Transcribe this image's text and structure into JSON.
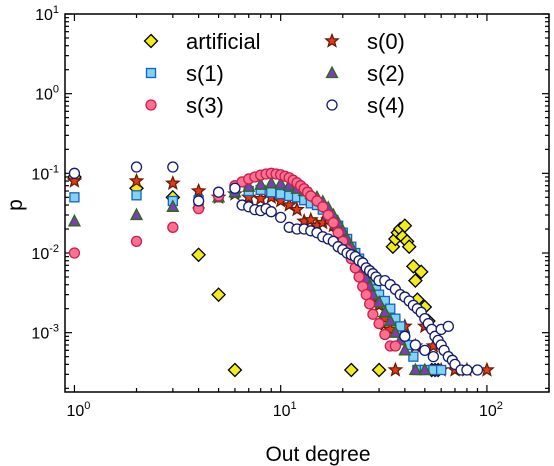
{
  "chart_data": {
    "type": "scatter",
    "xlabel": "Out degree",
    "ylabel": "p",
    "xscale": "log",
    "yscale": "log",
    "xlim": [
      0.9,
      200
    ],
    "ylim": [
      0.00018,
      10
    ],
    "x_ticks": [
      {
        "value": 1,
        "label": "10",
        "exp": "0"
      },
      {
        "value": 10,
        "label": "10",
        "exp": "1"
      },
      {
        "value": 100,
        "label": "10",
        "exp": "2"
      }
    ],
    "y_ticks": [
      {
        "value": 0.001,
        "label": "10",
        "exp": "-3"
      },
      {
        "value": 0.01,
        "label": "10",
        "exp": "-2"
      },
      {
        "value": 0.1,
        "label": "10",
        "exp": "-1"
      },
      {
        "value": 1,
        "label": "10",
        "exp": "0"
      },
      {
        "value": 10,
        "label": "10",
        "exp": "1"
      }
    ],
    "legend_position": "top",
    "series": [
      {
        "name": "artificial",
        "marker": "diamond",
        "color": "#f2ec1a",
        "edge": "#000000",
        "points": [
          [
            1,
            0.09
          ],
          [
            2,
            0.065
          ],
          [
            3,
            0.05
          ],
          [
            4,
            0.0095
          ],
          [
            5,
            0.003
          ],
          [
            6,
            0.00034
          ],
          [
            22,
            0.00034
          ],
          [
            30,
            0.00034
          ],
          [
            33,
            0.0011
          ],
          [
            35,
            0.012
          ],
          [
            36,
            0.015
          ],
          [
            37,
            0.018
          ],
          [
            38,
            0.02
          ],
          [
            39,
            0.016
          ],
          [
            40,
            0.022
          ],
          [
            41,
            0.014
          ],
          [
            42,
            0.012
          ],
          [
            44,
            0.0068
          ],
          [
            45,
            0.0045
          ],
          [
            46,
            0.0026
          ],
          [
            48,
            0.0058
          ],
          [
            50,
            0.0021
          ],
          [
            52,
            0.0014
          ],
          [
            54,
            0.00034
          ],
          [
            56,
            0.00034
          ],
          [
            58,
            0.00034
          ]
        ]
      },
      {
        "name": "s(0)",
        "marker": "star",
        "color": "#e23a1a",
        "edge": "#6b1a00",
        "points": [
          [
            1,
            0.08
          ],
          [
            2,
            0.08
          ],
          [
            3,
            0.075
          ],
          [
            4,
            0.06
          ],
          [
            5,
            0.05
          ],
          [
            6,
            0.055
          ],
          [
            7,
            0.05
          ],
          [
            8,
            0.048
          ],
          [
            9,
            0.05
          ],
          [
            10,
            0.045
          ],
          [
            11,
            0.04
          ],
          [
            12,
            0.035
          ],
          [
            13,
            0.025
          ],
          [
            14,
            0.026
          ],
          [
            15,
            0.022
          ],
          [
            16,
            0.024
          ],
          [
            17,
            0.026
          ],
          [
            18,
            0.022
          ],
          [
            19,
            0.018
          ],
          [
            20,
            0.015
          ],
          [
            21,
            0.012
          ],
          [
            22,
            0.0095
          ],
          [
            23,
            0.008
          ],
          [
            24,
            0.0065
          ],
          [
            25,
            0.0055
          ],
          [
            26,
            0.0045
          ],
          [
            27,
            0.0035
          ],
          [
            28,
            0.0028
          ],
          [
            30,
            0.0022
          ],
          [
            32,
            0.0015
          ],
          [
            34,
            0.0011
          ],
          [
            36,
            0.00034
          ],
          [
            40,
            0.0012
          ],
          [
            45,
            0.00068
          ],
          [
            50,
            0.0012
          ],
          [
            55,
            0.00068
          ],
          [
            60,
            0.00034
          ],
          [
            70,
            0.00034
          ],
          [
            80,
            0.00034
          ],
          [
            100,
            0.00034
          ]
        ]
      },
      {
        "name": "s(1)",
        "marker": "square",
        "color": "#7fd4f4",
        "edge": "#1a5fbf",
        "points": [
          [
            1,
            0.05
          ],
          [
            2,
            0.053
          ],
          [
            3,
            0.045
          ],
          [
            4,
            0.046
          ],
          [
            5,
            0.052
          ],
          [
            6,
            0.057
          ],
          [
            7,
            0.06
          ],
          [
            8,
            0.062
          ],
          [
            9,
            0.058
          ],
          [
            10,
            0.055
          ],
          [
            11,
            0.052
          ],
          [
            12,
            0.05
          ],
          [
            13,
            0.046
          ],
          [
            14,
            0.042
          ],
          [
            15,
            0.04
          ],
          [
            16,
            0.035
          ],
          [
            17,
            0.03
          ],
          [
            18,
            0.026
          ],
          [
            19,
            0.022
          ],
          [
            20,
            0.018
          ],
          [
            21,
            0.015
          ],
          [
            22,
            0.012
          ],
          [
            23,
            0.01
          ],
          [
            24,
            0.0085
          ],
          [
            25,
            0.007
          ],
          [
            26,
            0.006
          ],
          [
            27,
            0.005
          ],
          [
            28,
            0.0042
          ],
          [
            29,
            0.0035
          ],
          [
            30,
            0.003
          ],
          [
            32,
            0.0025
          ],
          [
            34,
            0.002
          ],
          [
            36,
            0.0015
          ],
          [
            38,
            0.0012
          ],
          [
            40,
            0.0009
          ],
          [
            42,
            0.0007
          ],
          [
            44,
            0.0005
          ],
          [
            46,
            0.00034
          ],
          [
            48,
            0.00034
          ],
          [
            50,
            0.00034
          ],
          [
            55,
            0.00034
          ],
          [
            60,
            0.00034
          ]
        ]
      },
      {
        "name": "s(2)",
        "marker": "triangle",
        "color": "#7c3fb0",
        "edge": "#2a6a1a",
        "points": [
          [
            1,
            0.025
          ],
          [
            2,
            0.03
          ],
          [
            3,
            0.038
          ],
          [
            4,
            0.042
          ],
          [
            5,
            0.05
          ],
          [
            6,
            0.058
          ],
          [
            7,
            0.068
          ],
          [
            8,
            0.072
          ],
          [
            9,
            0.075
          ],
          [
            10,
            0.074
          ],
          [
            11,
            0.07
          ],
          [
            12,
            0.064
          ],
          [
            13,
            0.06
          ],
          [
            14,
            0.055
          ],
          [
            15,
            0.05
          ],
          [
            16,
            0.044
          ],
          [
            17,
            0.037
          ],
          [
            18,
            0.03
          ],
          [
            19,
            0.024
          ],
          [
            20,
            0.019
          ],
          [
            21,
            0.015
          ],
          [
            22,
            0.012
          ],
          [
            23,
            0.0095
          ],
          [
            24,
            0.0075
          ],
          [
            25,
            0.006
          ],
          [
            26,
            0.0048
          ],
          [
            27,
            0.0038
          ],
          [
            28,
            0.003
          ],
          [
            30,
            0.0024
          ],
          [
            32,
            0.0018
          ],
          [
            34,
            0.0014
          ],
          [
            36,
            0.001
          ],
          [
            38,
            0.0008
          ],
          [
            40,
            0.0006
          ],
          [
            45,
            0.00034
          ],
          [
            50,
            0.00034
          ]
        ]
      },
      {
        "name": "s(3)",
        "marker": "circle",
        "color": "#ff6f8f",
        "edge": "#c8204e",
        "points": [
          [
            1,
            0.01
          ],
          [
            2,
            0.014
          ],
          [
            3,
            0.021
          ],
          [
            4,
            0.036
          ],
          [
            5,
            0.052
          ],
          [
            6,
            0.07
          ],
          [
            6.5,
            0.078
          ],
          [
            7,
            0.085
          ],
          [
            7.5,
            0.09
          ],
          [
            8,
            0.095
          ],
          [
            8.5,
            0.098
          ],
          [
            9,
            0.1
          ],
          [
            9.5,
            0.098
          ],
          [
            10,
            0.096
          ],
          [
            10.5,
            0.092
          ],
          [
            11,
            0.088
          ],
          [
            11.5,
            0.082
          ],
          [
            12,
            0.076
          ],
          [
            12.5,
            0.07
          ],
          [
            13,
            0.064
          ],
          [
            13.5,
            0.058
          ],
          [
            14,
            0.052
          ],
          [
            15,
            0.045
          ],
          [
            16,
            0.038
          ],
          [
            17,
            0.03
          ],
          [
            18,
            0.024
          ],
          [
            19,
            0.018
          ],
          [
            20,
            0.014
          ],
          [
            21,
            0.011
          ],
          [
            22,
            0.0085
          ],
          [
            23,
            0.0065
          ],
          [
            24,
            0.005
          ],
          [
            25,
            0.0038
          ],
          [
            26,
            0.003
          ],
          [
            27,
            0.0023
          ],
          [
            28,
            0.0017
          ],
          [
            30,
            0.0013
          ],
          [
            32,
            0.00095
          ],
          [
            34,
            0.00068
          ],
          [
            36,
            0.00068
          ]
        ]
      },
      {
        "name": "s(4)",
        "marker": "circle-open",
        "color": "#ffffff",
        "edge": "#101a6e",
        "points": [
          [
            1,
            0.1
          ],
          [
            2,
            0.12
          ],
          [
            3,
            0.12
          ],
          [
            4,
            0.045
          ],
          [
            5,
            0.058
          ],
          [
            6,
            0.065
          ],
          [
            6.5,
            0.04
          ],
          [
            7,
            0.038
          ],
          [
            7.5,
            0.035
          ],
          [
            8,
            0.034
          ],
          [
            8.5,
            0.036
          ],
          [
            9,
            0.033
          ],
          [
            10,
            0.028
          ],
          [
            11,
            0.021
          ],
          [
            12,
            0.02
          ],
          [
            13,
            0.02
          ],
          [
            14,
            0.019
          ],
          [
            15,
            0.018
          ],
          [
            16,
            0.016
          ],
          [
            17,
            0.015
          ],
          [
            18,
            0.014
          ],
          [
            19,
            0.012
          ],
          [
            20,
            0.011
          ],
          [
            21,
            0.01
          ],
          [
            22,
            0.0095
          ],
          [
            23,
            0.009
          ],
          [
            24,
            0.008
          ],
          [
            25,
            0.0075
          ],
          [
            26,
            0.0065
          ],
          [
            27,
            0.006
          ],
          [
            28,
            0.0055
          ],
          [
            29,
            0.005
          ],
          [
            30,
            0.0045
          ],
          [
            32,
            0.0045
          ],
          [
            34,
            0.004
          ],
          [
            36,
            0.0035
          ],
          [
            38,
            0.003
          ],
          [
            40,
            0.0028
          ],
          [
            42,
            0.0025
          ],
          [
            44,
            0.0022
          ],
          [
            46,
            0.002
          ],
          [
            48,
            0.0018
          ],
          [
            50,
            0.0015
          ],
          [
            52,
            0.0013
          ],
          [
            54,
            0.0011
          ],
          [
            56,
            0.0009
          ],
          [
            58,
            0.0008
          ],
          [
            60,
            0.0007
          ],
          [
            62,
            0.0006
          ],
          [
            65,
            0.0005
          ],
          [
            68,
            0.00045
          ],
          [
            70,
            0.0004
          ],
          [
            75,
            0.00034
          ],
          [
            80,
            0.00034
          ],
          [
            90,
            0.00034
          ],
          [
            40,
            0.0009
          ],
          [
            45,
            0.0007
          ],
          [
            50,
            0.0006
          ],
          [
            55,
            0.0005
          ],
          [
            60,
            0.0011
          ],
          [
            65,
            0.0012
          ]
        ]
      }
    ]
  }
}
